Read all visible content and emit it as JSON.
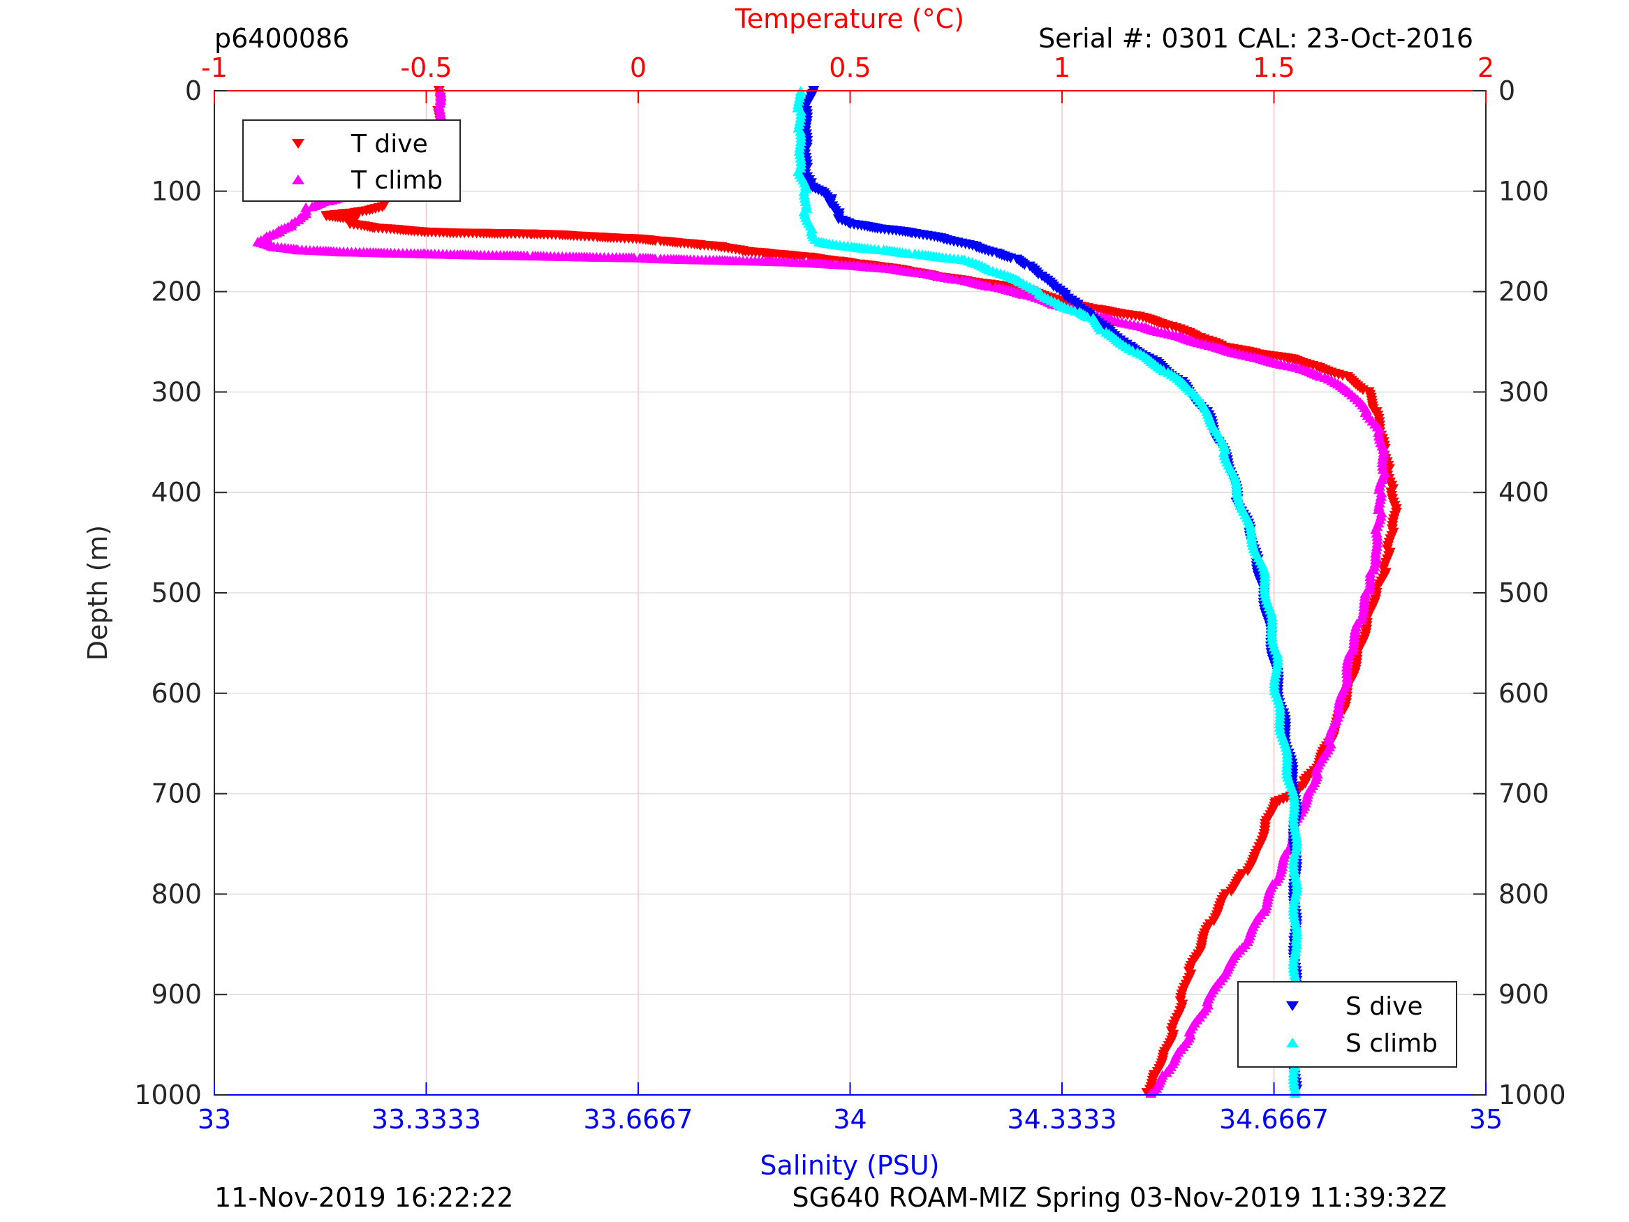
{
  "header": {
    "file_id": "p6400086",
    "serial": "Serial #: 0301  CAL: 23-Oct-2016"
  },
  "footer": {
    "left": "11-Nov-2019 16:22:22",
    "right": "SG640 ROAM-MIZ Spring 03-Nov-2019 11:39:32Z"
  },
  "chart_data": {
    "type": "scatter",
    "title": "",
    "ylabel": "Depth (m)",
    "ylim": [
      0,
      1000
    ],
    "y_reversed": true,
    "y_ticks": [
      0,
      100,
      200,
      300,
      400,
      500,
      600,
      700,
      800,
      900,
      1000
    ],
    "y_ticks_mirrored_right": true,
    "top_axis": {
      "label": "Temperature (°C)",
      "color": "#ff0000",
      "range": [
        -1,
        2
      ],
      "ticks": [
        -1,
        -0.5,
        0,
        0.5,
        1,
        1.5,
        2
      ],
      "tick_labels": [
        "-1",
        "-0.5",
        "0",
        "0.5",
        "1",
        "1.5",
        "2"
      ],
      "grid": true,
      "grid_color": "#f4c8c8"
    },
    "bottom_axis": {
      "label": "Salinity (PSU)",
      "color": "#0000ff",
      "range": [
        33,
        35
      ],
      "ticks": [
        33,
        33.3333,
        33.6667,
        34,
        34.3333,
        34.6667,
        35
      ],
      "tick_labels": [
        "33",
        "33.3333",
        "33.6667",
        "34",
        "34.3333",
        "34.6667",
        "35"
      ]
    },
    "horizontal_grid": true,
    "legends": [
      {
        "position": "top-left",
        "entries": [
          {
            "label": "T dive",
            "color": "#ff0000",
            "marker": "triangle-down"
          },
          {
            "label": "T climb",
            "color": "#ff00ff",
            "marker": "triangle-up"
          }
        ]
      },
      {
        "position": "bottom-right",
        "entries": [
          {
            "label": "S dive",
            "color": "#0000ff",
            "marker": "triangle-down"
          },
          {
            "label": "S climb",
            "color": "#00ffff",
            "marker": "triangle-up"
          }
        ]
      }
    ],
    "series": [
      {
        "name": "T dive",
        "axis": "temperature",
        "color": "#ff0000",
        "marker": "triangle-down",
        "points": [
          [
            -0.47,
            0
          ],
          [
            -0.47,
            20
          ],
          [
            -0.47,
            40
          ],
          [
            -0.47,
            55
          ],
          [
            -0.49,
            62
          ],
          [
            -0.52,
            68
          ],
          [
            -0.56,
            74
          ],
          [
            -0.58,
            80
          ],
          [
            -0.58,
            88
          ],
          [
            -0.59,
            95
          ],
          [
            -0.6,
            102
          ],
          [
            -0.59,
            110
          ],
          [
            -0.6,
            116
          ],
          [
            -0.64,
            120
          ],
          [
            -0.67,
            122
          ],
          [
            -0.7,
            123
          ],
          [
            -0.74,
            125
          ],
          [
            -0.67,
            128
          ],
          [
            -0.68,
            133
          ],
          [
            -0.62,
            137
          ],
          [
            -0.5,
            141
          ],
          [
            -0.44,
            142
          ],
          [
            -0.25,
            143
          ],
          [
            -0.18,
            144
          ],
          [
            -0.1,
            146
          ],
          [
            0.0,
            148
          ],
          [
            0.05,
            150
          ],
          [
            0.1,
            152
          ],
          [
            0.15,
            154
          ],
          [
            0.2,
            156
          ],
          [
            0.25,
            160
          ],
          [
            0.3,
            162
          ],
          [
            0.35,
            164
          ],
          [
            0.4,
            166
          ],
          [
            0.47,
            170
          ],
          [
            0.52,
            173
          ],
          [
            0.58,
            176
          ],
          [
            0.64,
            180
          ],
          [
            0.7,
            185
          ],
          [
            0.78,
            190
          ],
          [
            0.86,
            195
          ],
          [
            0.93,
            200
          ],
          [
            1.0,
            210
          ],
          [
            1.08,
            218
          ],
          [
            1.18,
            225
          ],
          [
            1.26,
            235
          ],
          [
            1.32,
            245
          ],
          [
            1.38,
            255
          ],
          [
            1.46,
            262
          ],
          [
            1.55,
            268
          ],
          [
            1.6,
            275
          ],
          [
            1.67,
            285
          ],
          [
            1.72,
            300
          ],
          [
            1.74,
            320
          ],
          [
            1.75,
            340
          ],
          [
            1.76,
            360
          ],
          [
            1.77,
            380
          ],
          [
            1.78,
            400
          ],
          [
            1.79,
            420
          ],
          [
            1.78,
            440
          ],
          [
            1.77,
            460
          ],
          [
            1.76,
            480
          ],
          [
            1.74,
            500
          ],
          [
            1.72,
            530
          ],
          [
            1.7,
            560
          ],
          [
            1.68,
            590
          ],
          [
            1.66,
            620
          ],
          [
            1.63,
            650
          ],
          [
            1.6,
            675
          ],
          [
            1.57,
            690
          ],
          [
            1.55,
            700
          ],
          [
            1.5,
            710
          ],
          [
            1.48,
            730
          ],
          [
            1.46,
            760
          ],
          [
            1.43,
            780
          ],
          [
            1.39,
            800
          ],
          [
            1.35,
            830
          ],
          [
            1.32,
            860
          ],
          [
            1.3,
            880
          ],
          [
            1.28,
            910
          ],
          [
            1.26,
            940
          ],
          [
            1.24,
            960
          ],
          [
            1.22,
            980
          ],
          [
            1.2,
            998
          ]
        ]
      },
      {
        "name": "T climb",
        "axis": "temperature",
        "color": "#ff00ff",
        "marker": "triangle-up",
        "points": [
          [
            -0.47,
            0
          ],
          [
            -0.47,
            15
          ],
          [
            -0.47,
            30
          ],
          [
            -0.47,
            45
          ],
          [
            -0.47,
            60
          ],
          [
            -0.48,
            68
          ],
          [
            -0.52,
            75
          ],
          [
            -0.55,
            82
          ],
          [
            -0.6,
            90
          ],
          [
            -0.65,
            98
          ],
          [
            -0.7,
            105
          ],
          [
            -0.74,
            110
          ],
          [
            -0.78,
            116
          ],
          [
            -0.78,
            122
          ],
          [
            -0.8,
            128
          ],
          [
            -0.82,
            134
          ],
          [
            -0.85,
            140
          ],
          [
            -0.88,
            146
          ],
          [
            -0.9,
            150
          ],
          [
            -0.86,
            155
          ],
          [
            -0.8,
            158
          ],
          [
            -0.7,
            160
          ],
          [
            -0.5,
            162
          ],
          [
            -0.4,
            163
          ],
          [
            -0.25,
            164
          ],
          [
            -0.15,
            165
          ],
          [
            0.0,
            166
          ],
          [
            0.05,
            167
          ],
          [
            0.15,
            168
          ],
          [
            0.25,
            169
          ],
          [
            0.35,
            170
          ],
          [
            0.45,
            172
          ],
          [
            0.52,
            174
          ],
          [
            0.6,
            177
          ],
          [
            0.68,
            182
          ],
          [
            0.76,
            188
          ],
          [
            0.84,
            195
          ],
          [
            0.92,
            203
          ],
          [
            0.98,
            212
          ],
          [
            1.05,
            220
          ],
          [
            1.12,
            228
          ],
          [
            1.2,
            236
          ],
          [
            1.28,
            245
          ],
          [
            1.36,
            255
          ],
          [
            1.45,
            265
          ],
          [
            1.55,
            275
          ],
          [
            1.62,
            285
          ],
          [
            1.68,
            300
          ],
          [
            1.72,
            320
          ],
          [
            1.75,
            340
          ],
          [
            1.76,
            360
          ],
          [
            1.76,
            380
          ],
          [
            1.75,
            400
          ],
          [
            1.75,
            420
          ],
          [
            1.74,
            440
          ],
          [
            1.74,
            460
          ],
          [
            1.73,
            480
          ],
          [
            1.72,
            500
          ],
          [
            1.7,
            530
          ],
          [
            1.68,
            560
          ],
          [
            1.67,
            590
          ],
          [
            1.65,
            620
          ],
          [
            1.63,
            650
          ],
          [
            1.6,
            680
          ],
          [
            1.58,
            700
          ],
          [
            1.55,
            730
          ],
          [
            1.53,
            760
          ],
          [
            1.5,
            790
          ],
          [
            1.47,
            820
          ],
          [
            1.43,
            850
          ],
          [
            1.38,
            880
          ],
          [
            1.34,
            910
          ],
          [
            1.3,
            940
          ],
          [
            1.27,
            960
          ],
          [
            1.24,
            980
          ],
          [
            1.21,
            998
          ]
        ]
      },
      {
        "name": "S dive",
        "axis": "salinity",
        "color": "#0000ff",
        "marker": "triangle-down",
        "points": [
          [
            33.94,
            0
          ],
          [
            33.93,
            20
          ],
          [
            33.93,
            40
          ],
          [
            33.93,
            60
          ],
          [
            33.93,
            80
          ],
          [
            33.94,
            95
          ],
          [
            33.96,
            102
          ],
          [
            33.97,
            108
          ],
          [
            33.97,
            115
          ],
          [
            33.98,
            122
          ],
          [
            33.98,
            128
          ],
          [
            34.0,
            133
          ],
          [
            34.05,
            138
          ],
          [
            34.1,
            142
          ],
          [
            34.15,
            148
          ],
          [
            34.2,
            156
          ],
          [
            34.23,
            162
          ],
          [
            34.26,
            168
          ],
          [
            34.28,
            175
          ],
          [
            34.3,
            185
          ],
          [
            34.32,
            195
          ],
          [
            34.34,
            205
          ],
          [
            34.36,
            215
          ],
          [
            34.38,
            225
          ],
          [
            34.41,
            240
          ],
          [
            34.44,
            255
          ],
          [
            34.48,
            270
          ],
          [
            34.52,
            290
          ],
          [
            34.56,
            320
          ],
          [
            34.58,
            350
          ],
          [
            34.6,
            380
          ],
          [
            34.61,
            410
          ],
          [
            34.63,
            440
          ],
          [
            34.64,
            470
          ],
          [
            34.65,
            500
          ],
          [
            34.66,
            540
          ],
          [
            34.67,
            580
          ],
          [
            34.68,
            620
          ],
          [
            34.69,
            660
          ],
          [
            34.7,
            700
          ],
          [
            34.7,
            750
          ],
          [
            34.7,
            800
          ],
          [
            34.7,
            850
          ],
          [
            34.7,
            900
          ],
          [
            34.7,
            950
          ],
          [
            34.7,
            998
          ]
        ]
      },
      {
        "name": "S climb",
        "axis": "salinity",
        "color": "#00ffff",
        "marker": "triangle-up",
        "points": [
          [
            33.92,
            0
          ],
          [
            33.92,
            20
          ],
          [
            33.92,
            40
          ],
          [
            33.92,
            60
          ],
          [
            33.92,
            80
          ],
          [
            33.93,
            100
          ],
          [
            33.93,
            120
          ],
          [
            33.94,
            140
          ],
          [
            33.95,
            150
          ],
          [
            34.0,
            155
          ],
          [
            34.05,
            158
          ],
          [
            34.1,
            162
          ],
          [
            34.18,
            168
          ],
          [
            34.22,
            178
          ],
          [
            34.27,
            190
          ],
          [
            34.3,
            202
          ],
          [
            34.33,
            213
          ],
          [
            34.36,
            220
          ],
          [
            34.38,
            226
          ],
          [
            34.4,
            240
          ],
          [
            34.45,
            260
          ],
          [
            34.5,
            280
          ],
          [
            34.54,
            300
          ],
          [
            34.57,
            330
          ],
          [
            34.59,
            360
          ],
          [
            34.61,
            400
          ],
          [
            34.63,
            440
          ],
          [
            34.65,
            480
          ],
          [
            34.66,
            520
          ],
          [
            34.67,
            560
          ],
          [
            34.67,
            600
          ],
          [
            34.68,
            640
          ],
          [
            34.69,
            680
          ],
          [
            34.7,
            720
          ],
          [
            34.7,
            760
          ],
          [
            34.7,
            800
          ],
          [
            34.7,
            850
          ],
          [
            34.7,
            900
          ],
          [
            34.7,
            950
          ],
          [
            34.7,
            998
          ]
        ]
      }
    ]
  }
}
